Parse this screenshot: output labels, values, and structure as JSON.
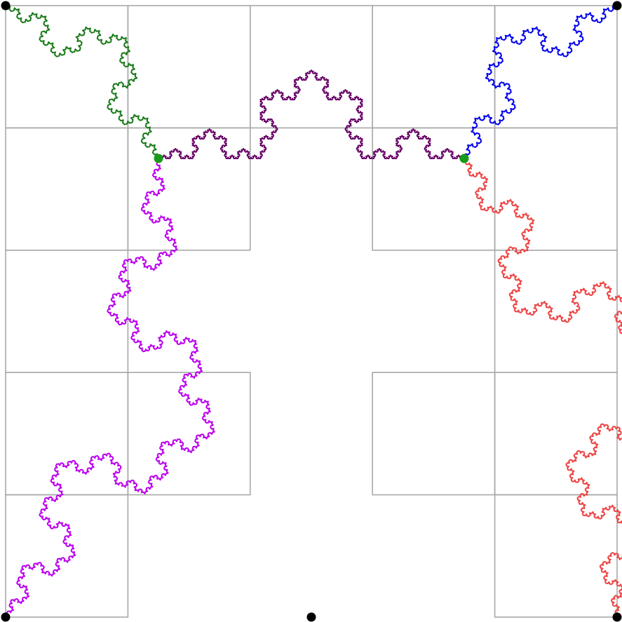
{
  "grid": {
    "size": 5,
    "cells": [
      [
        0,
        0
      ],
      [
        1,
        0
      ],
      [
        2,
        0
      ],
      [
        3,
        0
      ],
      [
        4,
        0
      ],
      [
        0,
        1
      ],
      [
        1,
        1
      ],
      [
        3,
        1
      ],
      [
        4,
        1
      ],
      [
        0,
        2
      ],
      [
        4,
        2
      ],
      [
        0,
        3
      ],
      [
        1,
        3
      ],
      [
        3,
        3
      ],
      [
        4,
        3
      ],
      [
        0,
        4
      ],
      [
        4,
        4
      ]
    ],
    "line_color": "#a8a8a8"
  },
  "curves": [
    {
      "name": "green",
      "color": "#1a7a1a",
      "from": [
        0,
        0
      ],
      "to": [
        1.25,
        1.25
      ],
      "depth": 4
    },
    {
      "name": "dark-purple",
      "color": "#660066",
      "from": [
        1.25,
        1.25
      ],
      "to": [
        3.75,
        1.25
      ],
      "depth": 5
    },
    {
      "name": "blue",
      "color": "#0000ee",
      "from": [
        3.75,
        1.25
      ],
      "to": [
        5,
        0
      ],
      "depth": 4
    },
    {
      "name": "magenta",
      "color": "#bb00ee",
      "from": [
        1.25,
        1.25
      ],
      "to": [
        0,
        5
      ],
      "depth": 5
    },
    {
      "name": "red",
      "color": "#ee4444",
      "from": [
        3.75,
        1.25
      ],
      "to": [
        5,
        5
      ],
      "depth": 5
    }
  ],
  "points": [
    {
      "name": "top-left",
      "at": [
        0,
        0
      ],
      "color": "#000000"
    },
    {
      "name": "top-right",
      "at": [
        5,
        0
      ],
      "color": "#000000"
    },
    {
      "name": "bottom-left",
      "at": [
        0,
        5
      ],
      "color": "#000000"
    },
    {
      "name": "bottom-center",
      "at": [
        2.5,
        5
      ],
      "color": "#000000"
    },
    {
      "name": "bottom-right",
      "at": [
        5,
        5
      ],
      "color": "#000000"
    },
    {
      "name": "junction-left",
      "at": [
        1.25,
        1.25
      ],
      "color": "#1a9a1a"
    },
    {
      "name": "junction-right",
      "at": [
        3.75,
        1.25
      ],
      "color": "#1a9a1a"
    }
  ]
}
